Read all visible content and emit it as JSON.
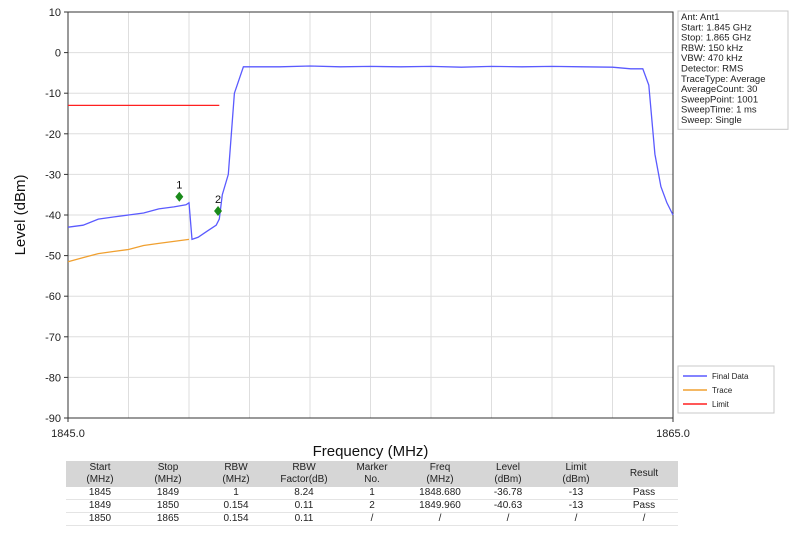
{
  "chart_data": {
    "type": "line",
    "xlabel": "Frequency (MHz)",
    "ylabel": "Level (dBm)",
    "xlim": [
      1845,
      1865
    ],
    "ylim": [
      -90,
      10
    ],
    "x_tick_labels": [
      "1845.0",
      "1865.0"
    ],
    "y_ticks": [
      10,
      0,
      -10,
      -20,
      -30,
      -40,
      -50,
      -60,
      -70,
      -80,
      -90
    ],
    "grid": true,
    "legend_position": "bottom-right",
    "series": [
      {
        "name": "Final Data",
        "color": "#5a5aff",
        "x": [
          1845,
          1845.5,
          1846,
          1846.5,
          1847,
          1847.5,
          1848,
          1848.5,
          1848.9,
          1849,
          1849.1,
          1849.3,
          1849.6,
          1849.9,
          1850,
          1850.1,
          1850.3,
          1850.5,
          1850.8,
          1851,
          1852,
          1853,
          1854,
          1855,
          1856,
          1857,
          1858,
          1859,
          1860,
          1861,
          1862,
          1863,
          1863.6,
          1864,
          1864.2,
          1864.4,
          1864.6,
          1864.8,
          1865
        ],
        "y": [
          -43,
          -42.5,
          -41,
          -40.5,
          -40,
          -39.5,
          -38.5,
          -38,
          -37.5,
          -37,
          -46,
          -45.5,
          -44,
          -42.5,
          -41,
          -35,
          -30,
          -10,
          -3.5,
          -3.5,
          -3.5,
          -3.3,
          -3.5,
          -3.4,
          -3.5,
          -3.4,
          -3.6,
          -3.4,
          -3.5,
          -3.4,
          -3.5,
          -3.6,
          -4,
          -4,
          -8,
          -25,
          -33,
          -37,
          -40
        ]
      },
      {
        "name": "Trace",
        "color": "#f0a030",
        "x": [
          1845,
          1845.5,
          1846,
          1846.5,
          1847,
          1847.5,
          1848,
          1848.5,
          1849
        ],
        "y": [
          -51.5,
          -50.5,
          -49.5,
          -49,
          -48.5,
          -47.5,
          -47,
          -46.5,
          -46
        ]
      },
      {
        "name": "Limit",
        "color": "#ff2020",
        "x": [
          1845,
          1850
        ],
        "y": [
          -13,
          -13
        ]
      }
    ],
    "markers": [
      {
        "label": "1",
        "x": 1848.68,
        "y": -35.5
      },
      {
        "label": "2",
        "x": 1849.96,
        "y": -39
      }
    ],
    "info_box": [
      "Ant: Ant1",
      "Start: 1.845 GHz",
      "Stop: 1.865 GHz",
      "RBW: 150 kHz",
      "VBW: 470 kHz",
      "Detector: RMS",
      "TraceType: Average",
      "AverageCount: 30",
      "SweepPoint: 1001",
      "SweepTime: 1 ms",
      "Sweep: Single"
    ]
  },
  "table": {
    "headers": [
      [
        "Start",
        "(MHz)"
      ],
      [
        "Stop",
        "(MHz)"
      ],
      [
        "RBW",
        "(MHz)"
      ],
      [
        "RBW",
        "Factor(dB)"
      ],
      [
        "Marker",
        "No."
      ],
      [
        "Freq",
        "(MHz)"
      ],
      [
        "Level",
        "(dBm)"
      ],
      [
        "Limit",
        "(dBm)"
      ],
      [
        "Result",
        ""
      ]
    ],
    "rows": [
      [
        "1845",
        "1849",
        "1",
        "8.24",
        "1",
        "1848.680",
        "-36.78",
        "-13",
        "Pass"
      ],
      [
        "1849",
        "1850",
        "0.154",
        "0.11",
        "2",
        "1849.960",
        "-40.63",
        "-13",
        "Pass"
      ],
      [
        "1850",
        "1865",
        "0.154",
        "0.11",
        "/",
        "/",
        "/",
        "/",
        "/"
      ]
    ]
  }
}
